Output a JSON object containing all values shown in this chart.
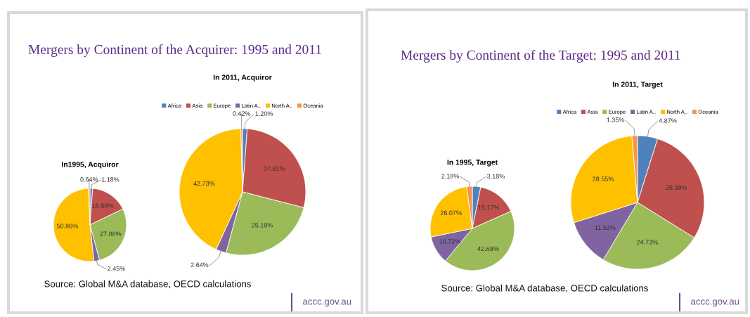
{
  "chart_data": [
    {
      "type": "pie",
      "title": "In1995, Acquiror",
      "categories": [
        null,
        null,
        null,
        null,
        null,
        null
      ],
      "values": [
        1.18,
        16.58,
        27.88,
        2.45,
        50.86,
        0.64
      ],
      "colors": [
        "#4f81bd",
        "#c0504d",
        "#9bbb59",
        "#8064a2",
        "#ffc000",
        "#f79646"
      ],
      "value_labels": [
        "1.18%",
        "16.58%",
        "27.88%",
        "2.45%",
        "50.86%",
        "0.64%"
      ],
      "annotations": [
        "Mergers by Continent of the Acquirer: 1995 and 2011",
        "Source: Global M&A database, OECD calculations"
      ]
    },
    {
      "type": "pie",
      "title": "In 2011, Acquiror",
      "categories": [
        "Africa",
        "Asia",
        "Europe",
        "Latin A..",
        "North A..",
        "Oceania"
      ],
      "values": [
        1.2,
        27.82,
        25.19,
        2.64,
        42.73,
        0.42
      ],
      "colors": [
        "#4f81bd",
        "#c0504d",
        "#9bbb59",
        "#8064a2",
        "#ffc000",
        "#f79646"
      ],
      "value_labels": [
        "1.20%",
        "27.82%",
        "25.19%",
        "2.64%",
        "42.73%",
        "0.42%"
      ],
      "legend": "top",
      "annotations": [
        "accc.gov.au"
      ]
    },
    {
      "type": "pie",
      "title": "In 1995, Target",
      "categories": [
        null,
        null,
        null,
        null,
        null,
        null
      ],
      "values": [
        3.18,
        15.17,
        42.69,
        10.72,
        26.07,
        2.18
      ],
      "colors": [
        "#4f81bd",
        "#c0504d",
        "#9bbb59",
        "#8064a2",
        "#ffc000",
        "#f79646"
      ],
      "value_labels": [
        "3.18%",
        "15.17%",
        "42.69%",
        "10.72%",
        "26.07%",
        "2.18%"
      ],
      "annotations": [
        "Mergers by Continent of the Target: 1995 and 2011",
        "Source: Global M&A database, OECD calculations"
      ]
    },
    {
      "type": "pie",
      "title": "In 2011, Target",
      "categories": [
        "Africa",
        "Asia",
        "Europe",
        "Latin A..",
        "North A..",
        "Oceania"
      ],
      "values": [
        4.87,
        28.99,
        24.73,
        11.52,
        28.55,
        1.35
      ],
      "colors": [
        "#4f81bd",
        "#c0504d",
        "#9bbb59",
        "#8064a2",
        "#ffc000",
        "#f79646"
      ],
      "value_labels": [
        "4.87%",
        "28.99%",
        "24.73%",
        "11.52%",
        "28.55%",
        "1.35%"
      ],
      "legend": "top",
      "annotations": [
        "accc.gov.au"
      ]
    }
  ]
}
